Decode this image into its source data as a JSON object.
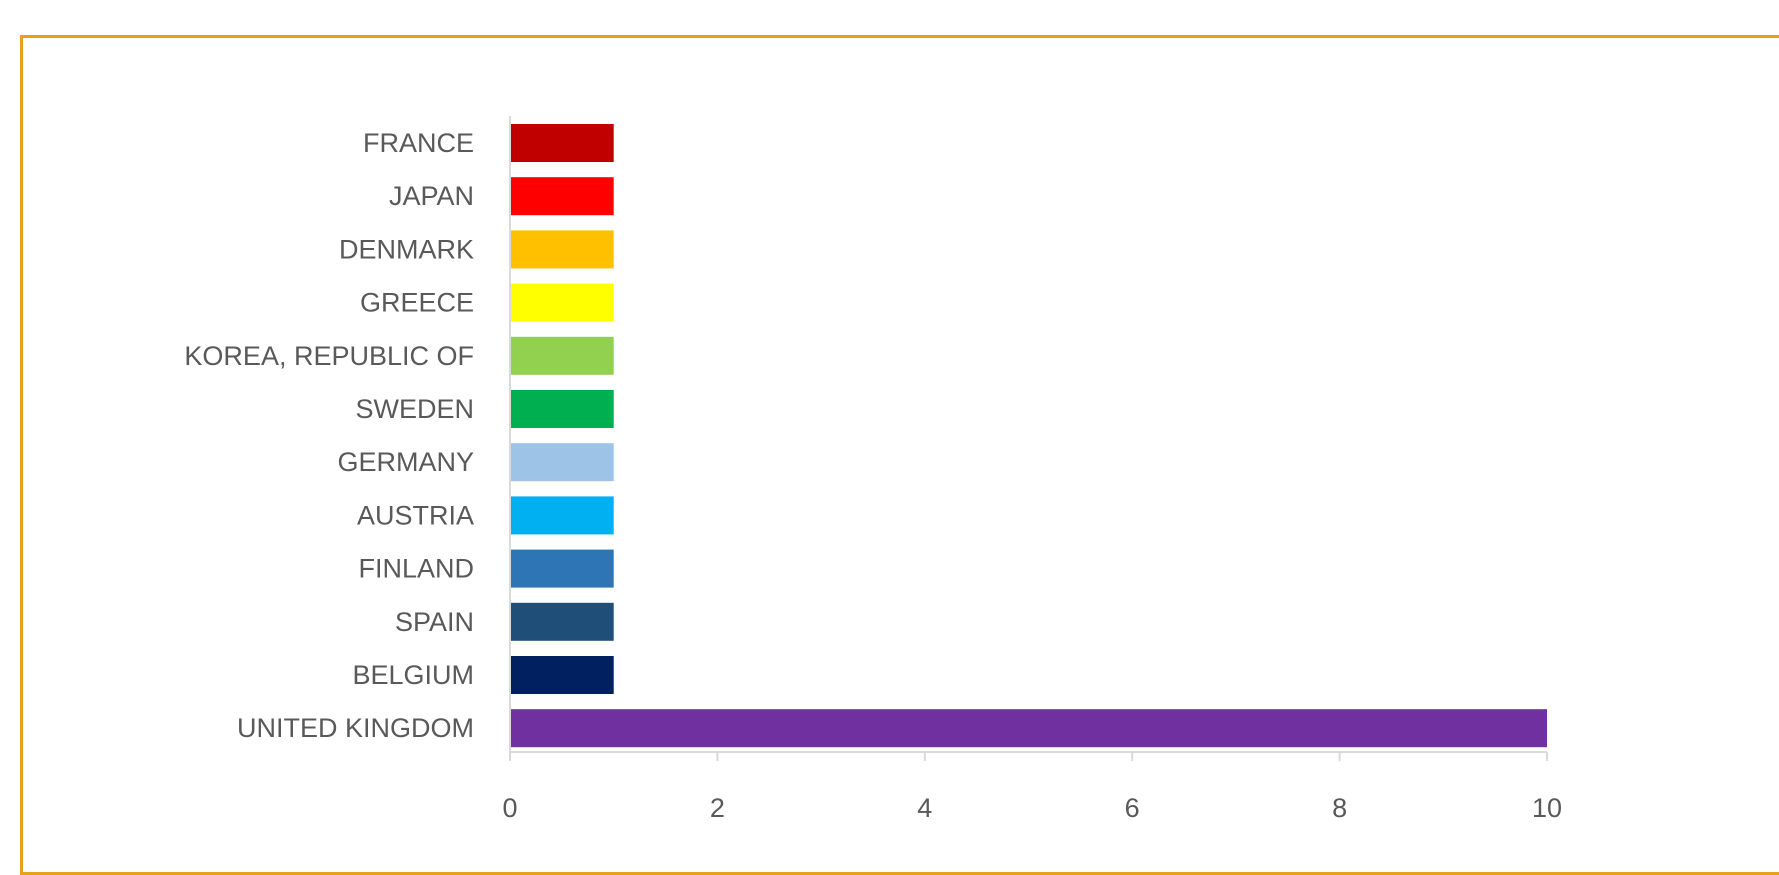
{
  "chart_data": {
    "type": "bar",
    "orientation": "horizontal",
    "categories": [
      "FRANCE",
      "JAPAN",
      "DENMARK",
      "GREECE",
      "KOREA, REPUBLIC OF",
      "SWEDEN",
      "GERMANY",
      "AUSTRIA",
      "FINLAND",
      "SPAIN",
      "BELGIUM",
      "UNITED KINGDOM"
    ],
    "values": [
      1,
      1,
      1,
      1,
      1,
      1,
      1,
      1,
      1,
      1,
      1,
      10
    ],
    "colors": [
      "#c00000",
      "#ff0000",
      "#ffc000",
      "#ffff00",
      "#92d050",
      "#00b050",
      "#9dc3e6",
      "#00b0f0",
      "#2e75b6",
      "#1f4e79",
      "#002060",
      "#7030a0"
    ],
    "xlim": [
      0,
      10
    ],
    "xticks": [
      0,
      2,
      4,
      6,
      8,
      10
    ],
    "xtick_labels": [
      "0",
      "2",
      "4",
      "6",
      "8",
      "10"
    ],
    "grid": false,
    "legend": "none",
    "frame_color": "#e8a11c",
    "axis_color": "#d9d9d9",
    "text_color": "#595959"
  }
}
